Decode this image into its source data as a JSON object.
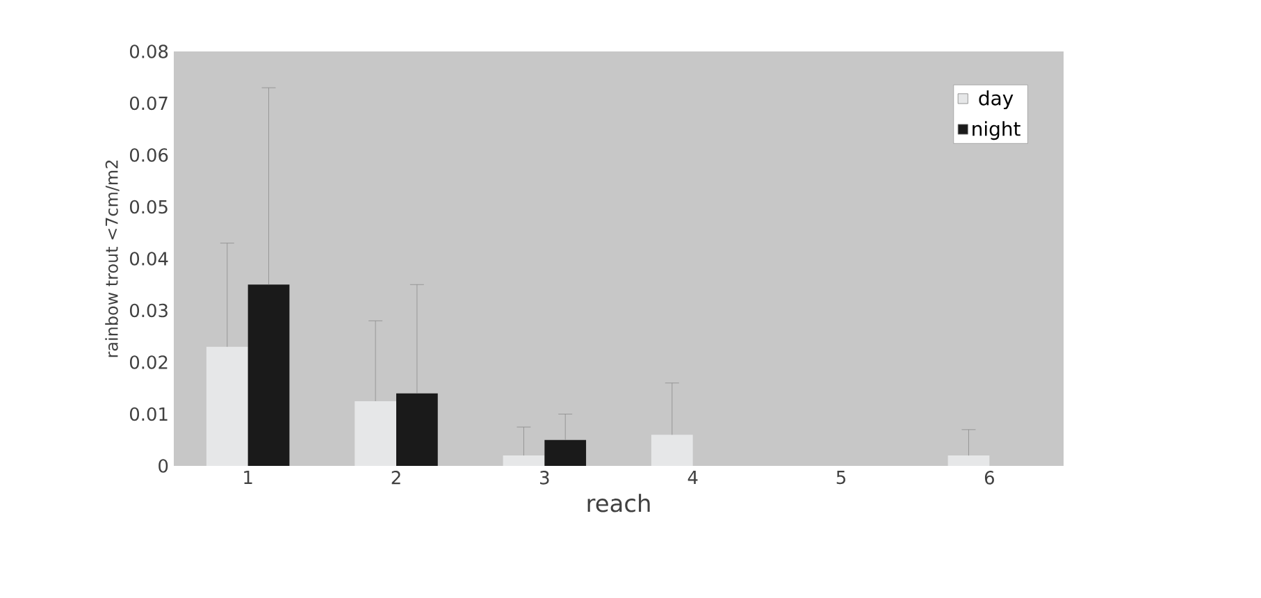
{
  "chart_data": {
    "type": "bar",
    "xlabel": "reach",
    "ylabel": "rainbow trout <7cm/m2",
    "categories": [
      "1",
      "2",
      "3",
      "4",
      "5",
      "6"
    ],
    "series": [
      {
        "name": "day",
        "color": "#e6e7e8",
        "values": [
          0.023,
          0.0125,
          0.002,
          0.006,
          0,
          0.002
        ],
        "errors": [
          [
            0.023,
            0.043
          ],
          [
            0.0125,
            0.028
          ],
          [
            0.002,
            0.0075
          ],
          [
            0.006,
            0.016
          ],
          null,
          [
            0.002,
            0.007
          ]
        ]
      },
      {
        "name": "night",
        "color": "#1a1a1a",
        "values": [
          0.035,
          0.014,
          0.005,
          0,
          0,
          0
        ],
        "errors": [
          [
            0.035,
            0.073
          ],
          [
            0.014,
            0.035
          ],
          [
            0.005,
            0.01
          ],
          null,
          null,
          null
        ]
      }
    ],
    "ylim": [
      0,
      0.08
    ],
    "yticks": [
      0,
      0.01,
      0.02,
      0.03,
      0.04,
      0.05,
      0.06,
      0.07,
      0.08
    ],
    "legend": "top right"
  }
}
